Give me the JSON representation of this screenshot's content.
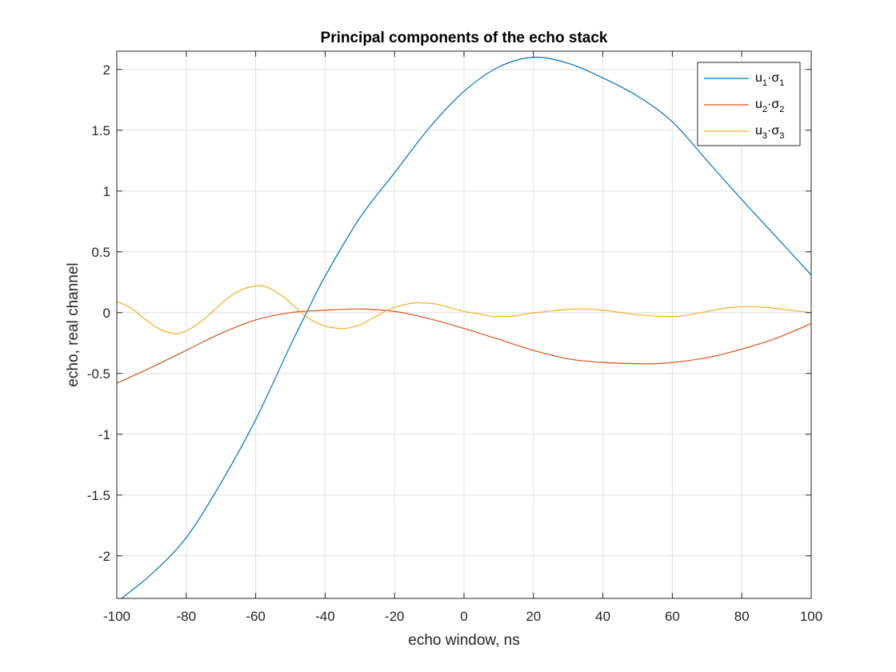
{
  "chart_data": {
    "type": "line",
    "title": "Principal components of the echo stack",
    "xlabel": "echo window, ns",
    "ylabel": "echo, real channel",
    "xlim": [
      -100,
      100
    ],
    "ylim": [
      -2.35,
      2.15
    ],
    "xticks": [
      -100,
      -80,
      -60,
      -40,
      -20,
      0,
      20,
      40,
      60,
      80,
      100
    ],
    "yticks": [
      -2,
      -1.5,
      -1,
      -0.5,
      0,
      0.5,
      1,
      1.5,
      2
    ],
    "xtick_labels": [
      "-100",
      "-80",
      "-60",
      "-40",
      "-20",
      "0",
      "20",
      "40",
      "60",
      "80",
      "100"
    ],
    "ytick_labels": [
      "-2",
      "-1.5",
      "-1",
      "-0.5",
      "0",
      "0.5",
      "1",
      "1.5",
      "2"
    ],
    "grid": true,
    "legend_position": "top-right",
    "series": [
      {
        "legend_base": "u",
        "legend_index": "1",
        "legend_mid": "·σ",
        "color": "#0072BD",
        "x": [
          -100,
          -90,
          -80,
          -70,
          -60,
          -50,
          -45,
          -40,
          -30,
          -20,
          -10,
          0,
          10,
          20,
          30,
          40,
          50,
          60,
          70,
          80,
          90,
          100
        ],
        "values": [
          -2.38,
          -2.15,
          -1.85,
          -1.4,
          -0.88,
          -0.27,
          0.02,
          0.3,
          0.78,
          1.15,
          1.52,
          1.82,
          2.02,
          2.1,
          2.05,
          1.93,
          1.78,
          1.57,
          1.25,
          0.93,
          0.62,
          0.31
        ]
      },
      {
        "legend_base": "u",
        "legend_index": "2",
        "legend_mid": "·σ",
        "color": "#D95319",
        "x": [
          -100,
          -90,
          -80,
          -70,
          -60,
          -50,
          -40,
          -30,
          -20,
          -10,
          0,
          10,
          20,
          30,
          40,
          50,
          55,
          60,
          70,
          80,
          90,
          100
        ],
        "values": [
          -0.58,
          -0.45,
          -0.31,
          -0.17,
          -0.06,
          0.0,
          0.02,
          0.03,
          0.01,
          -0.05,
          -0.13,
          -0.22,
          -0.31,
          -0.38,
          -0.41,
          -0.42,
          -0.42,
          -0.41,
          -0.37,
          -0.3,
          -0.21,
          -0.09
        ]
      },
      {
        "legend_base": "u",
        "legend_index": "3",
        "legend_mid": "·σ",
        "color": "#EDB120",
        "x": [
          -100,
          -96,
          -92,
          -88,
          -84,
          -82,
          -80,
          -76,
          -72,
          -68,
          -64,
          -60,
          -58,
          -56,
          -52,
          -48,
          -44,
          -40,
          -36,
          -34,
          -30,
          -26,
          -22,
          -18,
          -14,
          -12,
          -8,
          -4,
          0,
          4,
          8,
          10,
          14,
          18,
          24,
          32,
          40,
          48,
          56,
          62,
          70,
          76,
          82,
          88,
          94,
          100
        ],
        "values": [
          0.09,
          0.04,
          -0.05,
          -0.13,
          -0.17,
          -0.17,
          -0.15,
          -0.08,
          0.02,
          0.12,
          0.19,
          0.22,
          0.22,
          0.2,
          0.13,
          0.03,
          -0.06,
          -0.11,
          -0.13,
          -0.13,
          -0.1,
          -0.04,
          0.02,
          0.06,
          0.08,
          0.08,
          0.07,
          0.04,
          0.01,
          -0.01,
          -0.03,
          -0.03,
          -0.03,
          -0.01,
          0.01,
          0.03,
          0.02,
          -0.01,
          -0.03,
          -0.03,
          0.01,
          0.04,
          0.05,
          0.04,
          0.02,
          0.0
        ]
      }
    ]
  }
}
